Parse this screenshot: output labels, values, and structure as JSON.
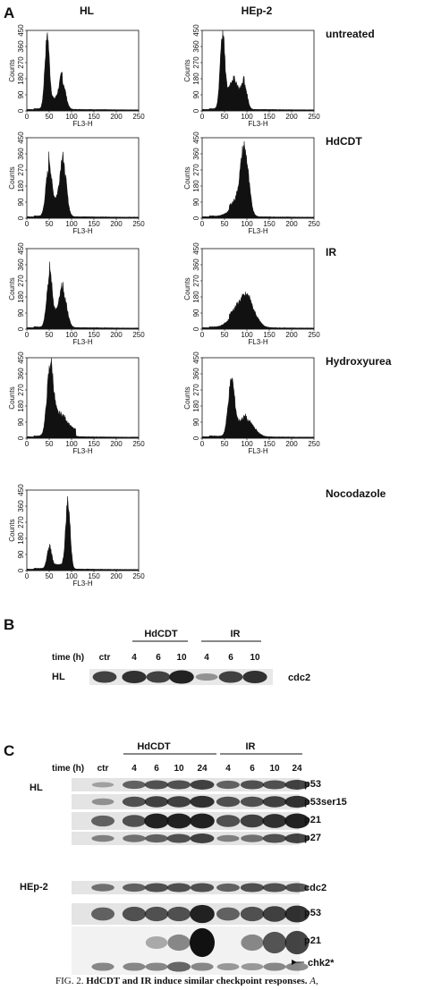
{
  "panel_a": {
    "label": "A",
    "columns": [
      "HL",
      "HEp-2"
    ],
    "conditions": [
      "untreated",
      "HdCDT",
      "IR",
      "Hydroxyurea",
      "Nocodazole"
    ],
    "y_axis_title": "Counts",
    "x_axis_title": "FL3-H",
    "y_ticks": [
      0,
      90,
      180,
      270,
      360,
      450
    ],
    "x_ticks": [
      0,
      50,
      100,
      150,
      200,
      250
    ]
  },
  "panel_b": {
    "label": "B",
    "groups": [
      "HdCDT",
      "IR"
    ],
    "time_label": "time (h)",
    "lanes": [
      "ctr",
      "4",
      "6",
      "10",
      "4",
      "6",
      "10"
    ],
    "cell_line": "HL",
    "proteins": [
      "cdc2"
    ]
  },
  "panel_c": {
    "label": "C",
    "groups": [
      "HdCDT",
      "IR"
    ],
    "time_label": "time (h)",
    "lanes": [
      "ctr",
      "4",
      "6",
      "10",
      "24",
      "4",
      "6",
      "10",
      "24"
    ],
    "blocks": [
      {
        "cell_line": "HL",
        "proteins": [
          "p53",
          "p53ser15",
          "p21",
          "p27"
        ]
      },
      {
        "cell_line": "HEp-2",
        "proteins": [
          "cdc2",
          "p53",
          "p21",
          "chk2*"
        ]
      }
    ]
  },
  "caption": {
    "label": "FIG. 2.",
    "title": "HdCDT and IR induce similar checkpoint responses.",
    "tail": "A,"
  }
}
